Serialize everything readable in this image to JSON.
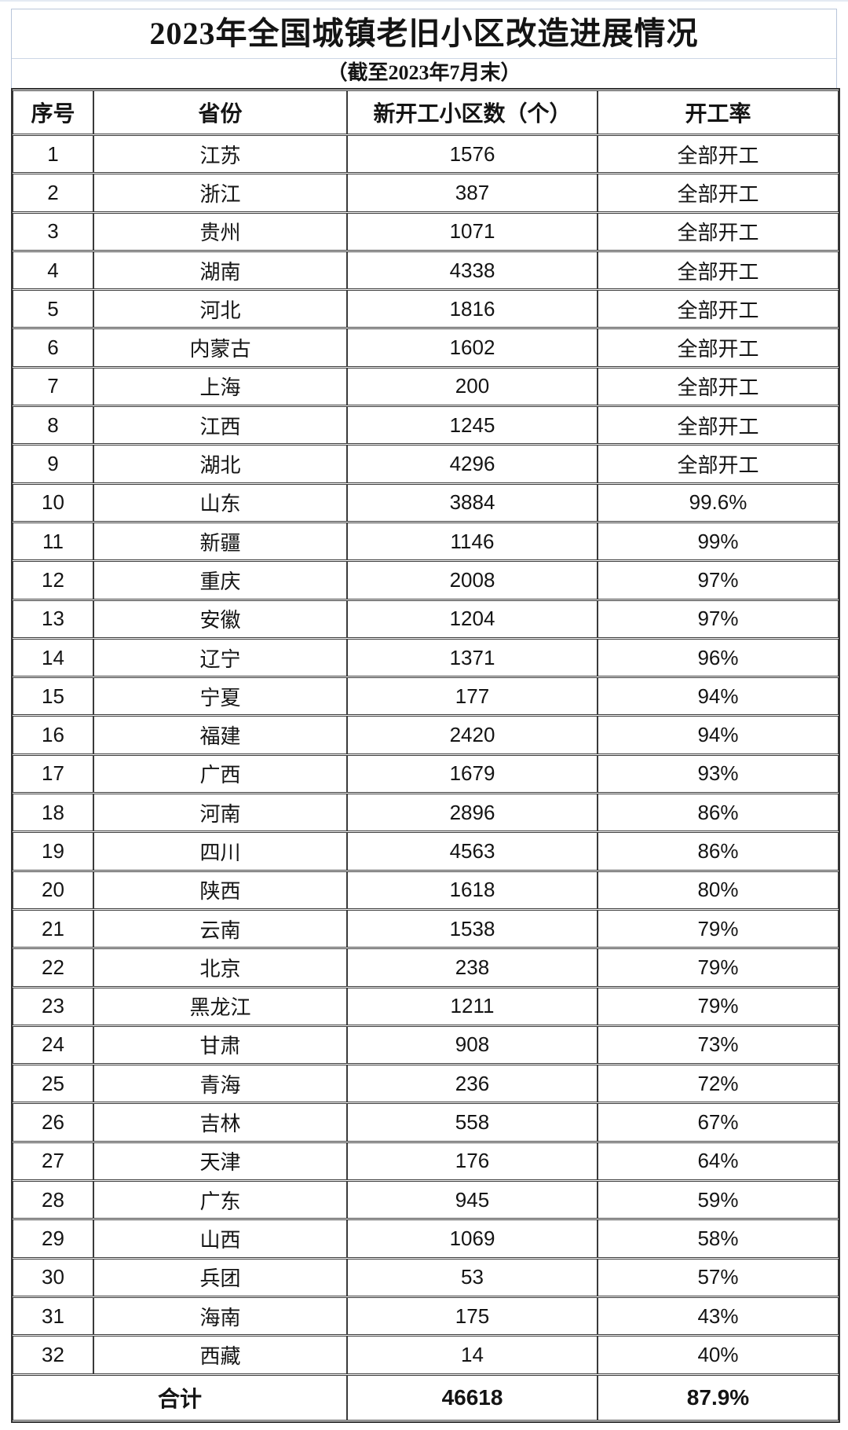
{
  "chart_data": {
    "type": "table",
    "title": "2023年全国城镇老旧小区改造进展情况",
    "subtitle": "（截至2023年7月末）",
    "columns": [
      "序号",
      "省份",
      "新开工小区数（个）",
      "开工率"
    ],
    "rows": [
      [
        "1",
        "江苏",
        "1576",
        "全部开工"
      ],
      [
        "2",
        "浙江",
        "387",
        "全部开工"
      ],
      [
        "3",
        "贵州",
        "1071",
        "全部开工"
      ],
      [
        "4",
        "湖南",
        "4338",
        "全部开工"
      ],
      [
        "5",
        "河北",
        "1816",
        "全部开工"
      ],
      [
        "6",
        "内蒙古",
        "1602",
        "全部开工"
      ],
      [
        "7",
        "上海",
        "200",
        "全部开工"
      ],
      [
        "8",
        "江西",
        "1245",
        "全部开工"
      ],
      [
        "9",
        "湖北",
        "4296",
        "全部开工"
      ],
      [
        "10",
        "山东",
        "3884",
        "99.6%"
      ],
      [
        "11",
        "新疆",
        "1146",
        "99%"
      ],
      [
        "12",
        "重庆",
        "2008",
        "97%"
      ],
      [
        "13",
        "安徽",
        "1204",
        "97%"
      ],
      [
        "14",
        "辽宁",
        "1371",
        "96%"
      ],
      [
        "15",
        "宁夏",
        "177",
        "94%"
      ],
      [
        "16",
        "福建",
        "2420",
        "94%"
      ],
      [
        "17",
        "广西",
        "1679",
        "93%"
      ],
      [
        "18",
        "河南",
        "2896",
        "86%"
      ],
      [
        "19",
        "四川",
        "4563",
        "86%"
      ],
      [
        "20",
        "陕西",
        "1618",
        "80%"
      ],
      [
        "21",
        "云南",
        "1538",
        "79%"
      ],
      [
        "22",
        "北京",
        "238",
        "79%"
      ],
      [
        "23",
        "黑龙江",
        "1211",
        "79%"
      ],
      [
        "24",
        "甘肃",
        "908",
        "73%"
      ],
      [
        "25",
        "青海",
        "236",
        "72%"
      ],
      [
        "26",
        "吉林",
        "558",
        "67%"
      ],
      [
        "27",
        "天津",
        "176",
        "64%"
      ],
      [
        "28",
        "广东",
        "945",
        "59%"
      ],
      [
        "29",
        "山西",
        "1069",
        "58%"
      ],
      [
        "30",
        "兵团",
        "53",
        "57%"
      ],
      [
        "31",
        "海南",
        "175",
        "43%"
      ],
      [
        "32",
        "西藏",
        "14",
        "40%"
      ]
    ],
    "total_row": {
      "label": "合计",
      "count": "46618",
      "rate": "87.9%"
    }
  }
}
